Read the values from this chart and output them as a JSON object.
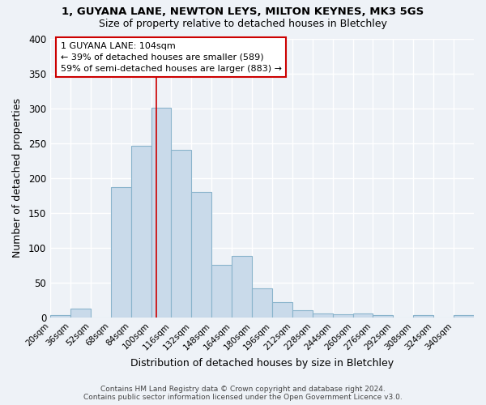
{
  "title1": "1, GUYANA LANE, NEWTON LEYS, MILTON KEYNES, MK3 5GS",
  "title2": "Size of property relative to detached houses in Bletchley",
  "xlabel": "Distribution of detached houses by size in Bletchley",
  "ylabel": "Number of detached properties",
  "categories": [
    "20sqm",
    "36sqm",
    "52sqm",
    "68sqm",
    "84sqm",
    "100sqm",
    "116sqm",
    "132sqm",
    "148sqm",
    "164sqm",
    "180sqm",
    "196sqm",
    "212sqm",
    "228sqm",
    "244sqm",
    "260sqm",
    "276sqm",
    "292sqm",
    "308sqm",
    "324sqm",
    "340sqm"
  ],
  "bin_starts": [
    20,
    36,
    52,
    68,
    84,
    100,
    116,
    132,
    148,
    164,
    180,
    196,
    212,
    228,
    244,
    260,
    276,
    292,
    308,
    324,
    340
  ],
  "values": [
    3,
    13,
    0,
    187,
    246,
    301,
    240,
    180,
    75,
    88,
    42,
    22,
    10,
    6,
    5,
    6,
    3,
    0,
    3,
    0,
    3
  ],
  "bar_color": "#c9daea",
  "bar_edge_color": "#8ab4cc",
  "property_line_x": 104,
  "vline_color": "#cc0000",
  "annotation_text": "1 GUYANA LANE: 104sqm\n← 39% of detached houses are smaller (589)\n59% of semi-detached houses are larger (883) →",
  "annotation_box_color": "white",
  "annotation_box_edge": "#cc0000",
  "footer": "Contains HM Land Registry data © Crown copyright and database right 2024.\nContains public sector information licensed under the Open Government Licence v3.0.",
  "ylim": [
    0,
    400
  ],
  "bin_width": 16,
  "background_color": "#eef2f7",
  "grid_color": "white",
  "yticks": [
    0,
    50,
    100,
    150,
    200,
    250,
    300,
    350,
    400
  ]
}
